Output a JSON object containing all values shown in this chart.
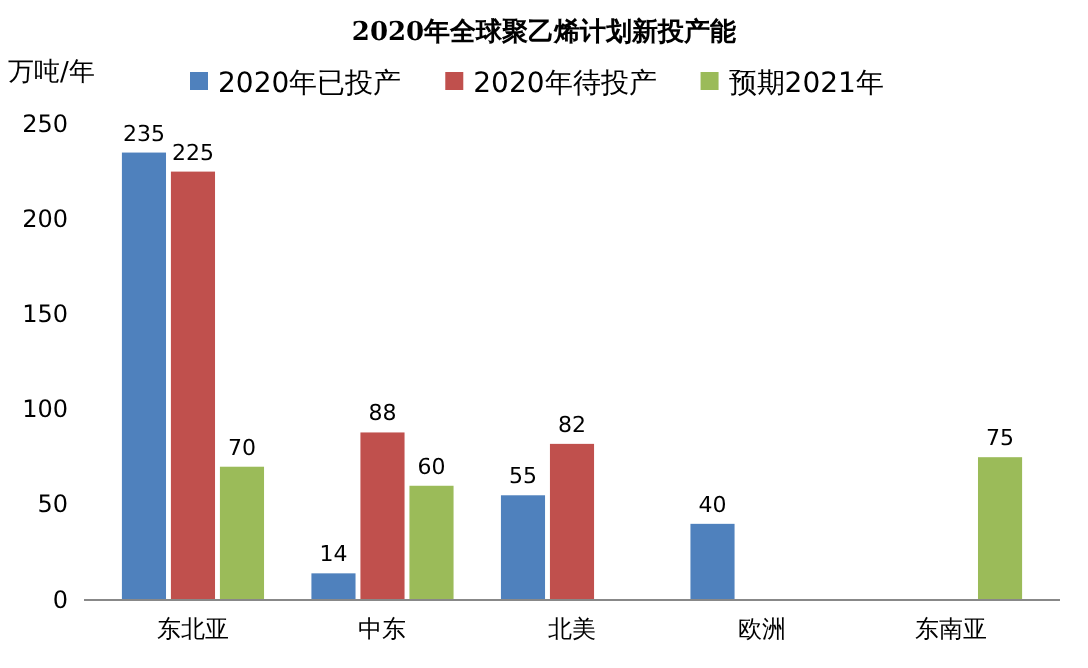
{
  "chart_data": {
    "type": "bar",
    "title": "2020年全球聚乙烯计划新投产能",
    "ylabel": "万吨/年",
    "categories": [
      "东北亚",
      "中东",
      "北美",
      "欧洲",
      "东南亚"
    ],
    "series": [
      {
        "name": "2020年已投产",
        "color": "#4f81bd",
        "values": [
          235,
          14,
          55,
          40,
          null
        ]
      },
      {
        "name": "2020年待投产",
        "color": "#c0504d",
        "values": [
          225,
          88,
          82,
          null,
          null
        ]
      },
      {
        "name": "预期2021年",
        "color": "#9bbb59",
        "values": [
          70,
          60,
          null,
          null,
          75
        ]
      }
    ],
    "ylim": [
      0,
      250
    ],
    "yticks": [
      0,
      50,
      100,
      150,
      200,
      250
    ],
    "grid": false,
    "legend": "top",
    "data_labels": true
  }
}
